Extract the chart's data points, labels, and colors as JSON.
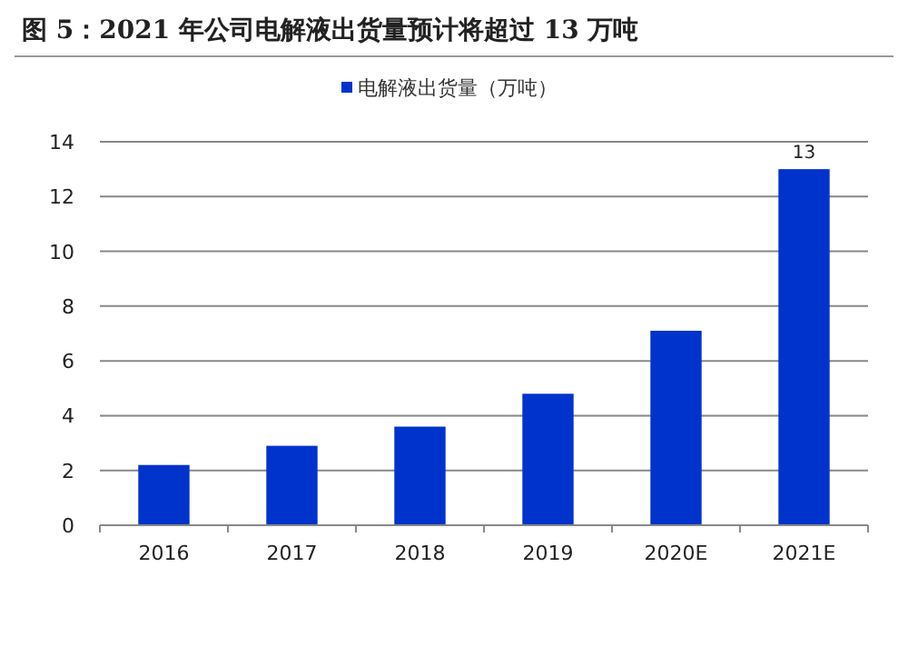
{
  "chart_data": {
    "type": "bar",
    "title": "图 5：2021 年公司电解液出货量预计将超过 13  万吨",
    "categories": [
      "2016",
      "2017",
      "2018",
      "2019",
      "2020E",
      "2021E"
    ],
    "series": [
      {
        "name": "电解液出货量（万吨）",
        "color": "#0033cc",
        "values": [
          2.2,
          2.9,
          3.6,
          4.8,
          7.1,
          13
        ],
        "value_labels": [
          null,
          null,
          null,
          null,
          null,
          "13"
        ]
      }
    ],
    "ylim": [
      0,
      14
    ],
    "yticks": [
      0,
      2,
      4,
      6,
      8,
      10,
      12,
      14
    ],
    "grid": "y",
    "legend": "top"
  }
}
